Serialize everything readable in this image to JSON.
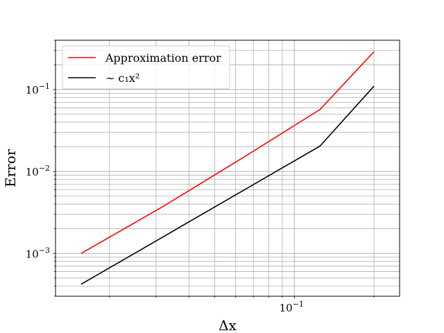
{
  "chart_data": {
    "type": "line",
    "title": "",
    "xlabel": "Δx",
    "ylabel": "Error",
    "xscale": "log",
    "yscale": "log",
    "xlim": [
      0.0125,
      0.25
    ],
    "ylim": [
      0.0003,
      0.4
    ],
    "grid": "both-major-and-minor",
    "legend_position": "upper-left",
    "x_tick_labels": [
      {
        "value": 0.1,
        "base": "10",
        "exp": "−1"
      }
    ],
    "y_tick_labels": [
      {
        "value": 0.001,
        "base": "10",
        "exp": "−3"
      },
      {
        "value": 0.01,
        "base": "10",
        "exp": "−2"
      },
      {
        "value": 0.1,
        "base": "10",
        "exp": "−1"
      }
    ],
    "series": [
      {
        "name": "Approximation error",
        "color": "#ff0000",
        "x": [
          0.015625,
          0.03125,
          0.0625,
          0.125,
          0.2
        ],
        "y": [
          0.001,
          0.0036,
          0.0141,
          0.057,
          0.29
        ]
      },
      {
        "name": "∼ c₁x²",
        "color": "#000000",
        "x": [
          0.015625,
          0.03125,
          0.0625,
          0.125,
          0.2
        ],
        "y": [
          0.00042,
          0.00153,
          0.0056,
          0.0204,
          0.11
        ]
      }
    ]
  }
}
